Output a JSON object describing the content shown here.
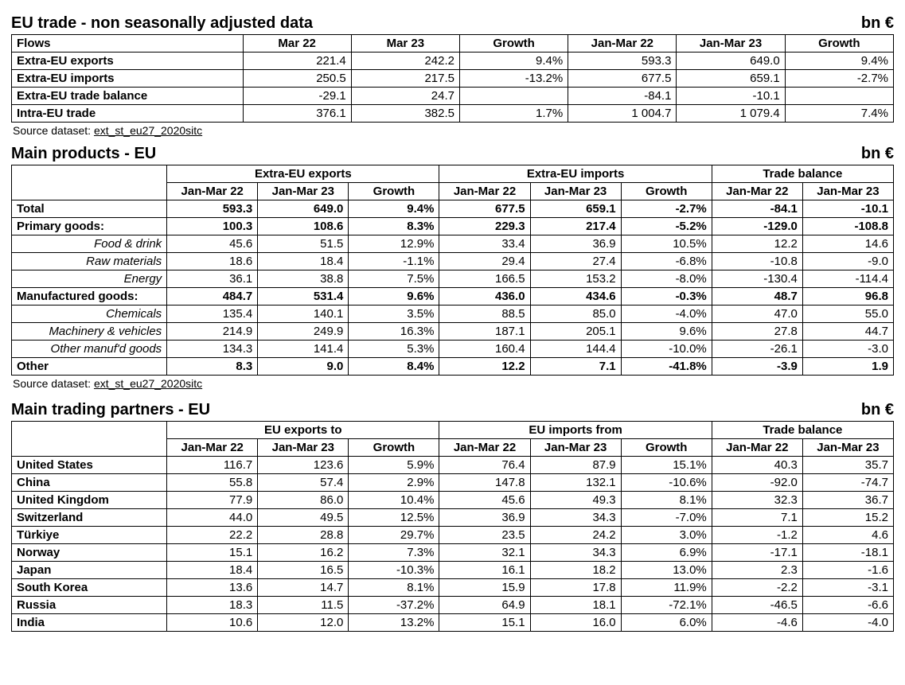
{
  "unit_label": "bn €",
  "source_text": "Source dataset:",
  "source_link": "ext_st_eu27_2020sitc",
  "table1": {
    "title": "EU trade - non seasonally adjusted data",
    "columns": [
      "Flows",
      "Mar 22",
      "Mar 23",
      "Growth",
      "Jan-Mar 22",
      "Jan-Mar 23",
      "Growth"
    ],
    "rows": [
      {
        "label": "Extra-EU exports",
        "v": [
          "221.4",
          "242.2",
          "9.4%",
          "593.3",
          "649.0",
          "9.4%"
        ]
      },
      {
        "label": "Extra-EU imports",
        "v": [
          "250.5",
          "217.5",
          "-13.2%",
          "677.5",
          "659.1",
          "-2.7%"
        ]
      },
      {
        "label": "Extra-EU trade balance",
        "v": [
          "-29.1",
          "24.7",
          "",
          "-84.1",
          "-10.1",
          ""
        ]
      },
      {
        "label": "Intra-EU trade",
        "v": [
          "376.1",
          "382.5",
          "1.7%",
          "1 004.7",
          "1 079.4",
          "7.4%"
        ]
      }
    ]
  },
  "table2": {
    "title": "Main products - EU",
    "group_headers": [
      "Extra-EU exports",
      "Extra-EU imports",
      "Trade balance"
    ],
    "sub_headers": [
      "Jan-Mar 22",
      "Jan-Mar 23",
      "Growth",
      "Jan-Mar 22",
      "Jan-Mar 23",
      "Growth",
      "Jan-Mar 22",
      "Jan-Mar 23"
    ],
    "rows": [
      {
        "label": "Total",
        "bold": true,
        "sub": false,
        "v": [
          "593.3",
          "649.0",
          "9.4%",
          "677.5",
          "659.1",
          "-2.7%",
          "-84.1",
          "-10.1"
        ]
      },
      {
        "label": "Primary goods:",
        "bold": true,
        "sub": false,
        "v": [
          "100.3",
          "108.6",
          "8.3%",
          "229.3",
          "217.4",
          "-5.2%",
          "-129.0",
          "-108.8"
        ]
      },
      {
        "label": "Food & drink",
        "bold": false,
        "sub": true,
        "v": [
          "45.6",
          "51.5",
          "12.9%",
          "33.4",
          "36.9",
          "10.5%",
          "12.2",
          "14.6"
        ]
      },
      {
        "label": "Raw materials",
        "bold": false,
        "sub": true,
        "v": [
          "18.6",
          "18.4",
          "-1.1%",
          "29.4",
          "27.4",
          "-6.8%",
          "-10.8",
          "-9.0"
        ]
      },
      {
        "label": "Energy",
        "bold": false,
        "sub": true,
        "v": [
          "36.1",
          "38.8",
          "7.5%",
          "166.5",
          "153.2",
          "-8.0%",
          "-130.4",
          "-114.4"
        ]
      },
      {
        "label": "Manufactured goods:",
        "bold": true,
        "sub": false,
        "v": [
          "484.7",
          "531.4",
          "9.6%",
          "436.0",
          "434.6",
          "-0.3%",
          "48.7",
          "96.8"
        ]
      },
      {
        "label": "Chemicals",
        "bold": false,
        "sub": true,
        "v": [
          "135.4",
          "140.1",
          "3.5%",
          "88.5",
          "85.0",
          "-4.0%",
          "47.0",
          "55.0"
        ]
      },
      {
        "label": "Machinery & vehicles",
        "bold": false,
        "sub": true,
        "v": [
          "214.9",
          "249.9",
          "16.3%",
          "187.1",
          "205.1",
          "9.6%",
          "27.8",
          "44.7"
        ]
      },
      {
        "label": "Other manuf'd goods",
        "bold": false,
        "sub": true,
        "v": [
          "134.3",
          "141.4",
          "5.3%",
          "160.4",
          "144.4",
          "-10.0%",
          "-26.1",
          "-3.0"
        ]
      },
      {
        "label": "Other",
        "bold": true,
        "sub": false,
        "v": [
          "8.3",
          "9.0",
          "8.4%",
          "12.2",
          "7.1",
          "-41.8%",
          "-3.9",
          "1.9"
        ]
      }
    ]
  },
  "table3": {
    "title": "Main trading partners - EU",
    "group_headers": [
      "EU exports to",
      "EU imports from",
      "Trade balance"
    ],
    "sub_headers": [
      "Jan-Mar 22",
      "Jan-Mar 23",
      "Growth",
      "Jan-Mar 22",
      "Jan-Mar 23",
      "Growth",
      "Jan-Mar 22",
      "Jan-Mar 23"
    ],
    "rows": [
      {
        "label": "United States",
        "v": [
          "116.7",
          "123.6",
          "5.9%",
          "76.4",
          "87.9",
          "15.1%",
          "40.3",
          "35.7"
        ]
      },
      {
        "label": "China",
        "v": [
          "55.8",
          "57.4",
          "2.9%",
          "147.8",
          "132.1",
          "-10.6%",
          "-92.0",
          "-74.7"
        ]
      },
      {
        "label": "United Kingdom",
        "v": [
          "77.9",
          "86.0",
          "10.4%",
          "45.6",
          "49.3",
          "8.1%",
          "32.3",
          "36.7"
        ]
      },
      {
        "label": "Switzerland",
        "v": [
          "44.0",
          "49.5",
          "12.5%",
          "36.9",
          "34.3",
          "-7.0%",
          "7.1",
          "15.2"
        ]
      },
      {
        "label": "Türkiye",
        "v": [
          "22.2",
          "28.8",
          "29.7%",
          "23.5",
          "24.2",
          "3.0%",
          "-1.2",
          "4.6"
        ]
      },
      {
        "label": "Norway",
        "v": [
          "15.1",
          "16.2",
          "7.3%",
          "32.1",
          "34.3",
          "6.9%",
          "-17.1",
          "-18.1"
        ]
      },
      {
        "label": "Japan",
        "v": [
          "18.4",
          "16.5",
          "-10.3%",
          "16.1",
          "18.2",
          "13.0%",
          "2.3",
          "-1.6"
        ]
      },
      {
        "label": "South Korea",
        "v": [
          "13.6",
          "14.7",
          "8.1%",
          "15.9",
          "17.8",
          "11.9%",
          "-2.2",
          "-3.1"
        ]
      },
      {
        "label": "Russia",
        "v": [
          "18.3",
          "11.5",
          "-37.2%",
          "64.9",
          "18.1",
          "-72.1%",
          "-46.5",
          "-6.6"
        ]
      },
      {
        "label": "India",
        "v": [
          "10.6",
          "12.0",
          "13.2%",
          "15.1",
          "16.0",
          "6.0%",
          "-4.6",
          "-4.0"
        ]
      }
    ]
  }
}
